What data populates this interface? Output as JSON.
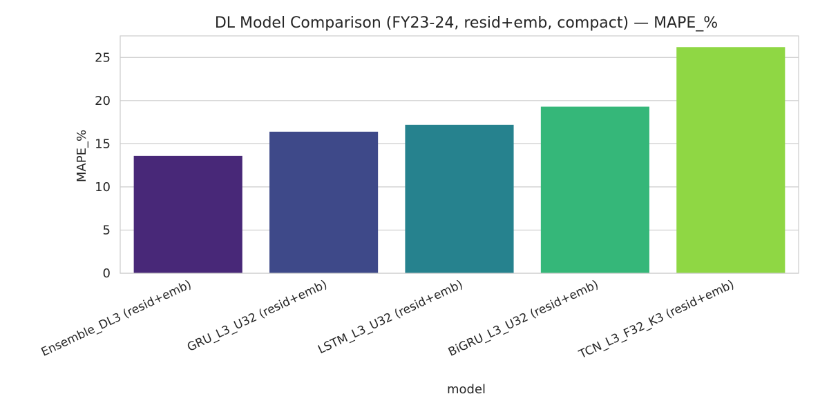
{
  "chart_data": {
    "type": "bar",
    "title": "DL Model Comparison (FY23-24, resid+emb, compact) — MAPE_%",
    "xlabel": "model",
    "ylabel": "MAPE_%",
    "categories": [
      "Ensemble_DL3 (resid+emb)",
      "GRU_L3_U32 (resid+emb)",
      "LSTM_L3_U32 (resid+emb)",
      "BiGRU_L3_U32 (resid+emb)",
      "TCN_L3_F32_K3 (resid+emb)"
    ],
    "values": [
      13.6,
      16.4,
      17.2,
      19.3,
      26.2
    ],
    "colors": [
      "#482878",
      "#3e4989",
      "#26828e",
      "#35b779",
      "#8fd744"
    ],
    "ylim": [
      0,
      27.5
    ],
    "yticks": [
      0,
      5,
      10,
      15,
      20,
      25
    ],
    "grid": true,
    "legend": "none"
  }
}
